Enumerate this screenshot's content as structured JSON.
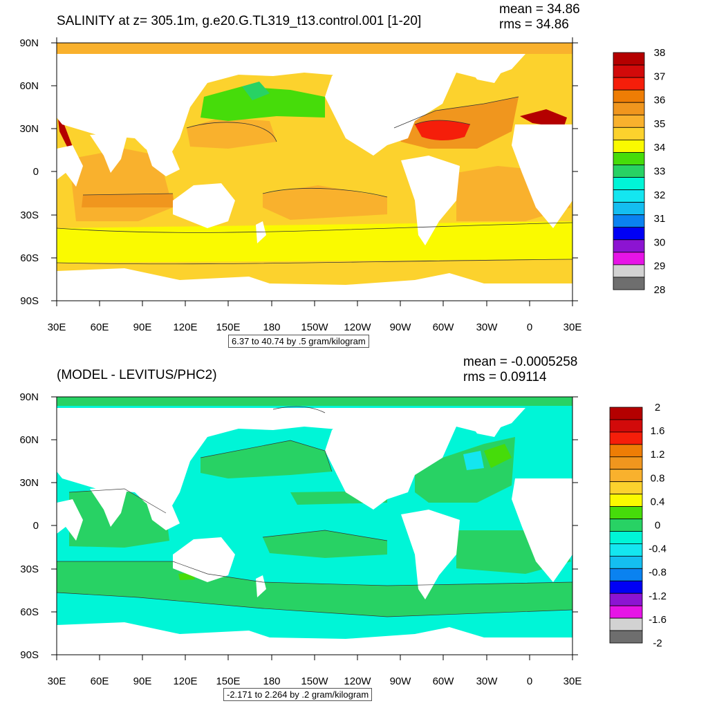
{
  "panels": [
    {
      "id": "salinity",
      "title": "SALINITY at z= 305.1m, g.e20.G.TL319_t13.control.001 [1-20]",
      "mean_text": "mean = 34.86",
      "rms_text": "rms = 34.86",
      "subtitle": "6.37 to 40.74 by .5 gram/kilogram",
      "colorbar_labels": [
        "38",
        "37",
        "36",
        "35",
        "34",
        "33",
        "32",
        "31",
        "30",
        "29",
        "28"
      ],
      "colorbar_colors": [
        "#b40000",
        "#d20a0a",
        "#f51e0a",
        "#ee7d05",
        "#f0961e",
        "#f9b12d",
        "#fcd22d",
        "#fafa00",
        "#46dc0a",
        "#28d264",
        "#00f5d7",
        "#14e6f0",
        "#14bef0",
        "#0a82f0",
        "#0000f5",
        "#8c14d2",
        "#e614e6",
        "#d2d2d2",
        "#6e6e6e"
      ],
      "ocean_base_color": "#fcd22d",
      "x_ticks": [
        "30E",
        "60E",
        "90E",
        "120E",
        "150E",
        "180",
        "150W",
        "120W",
        "90W",
        "60W",
        "30W",
        "0",
        "30E"
      ],
      "y_ticks": [
        "90N",
        "60N",
        "30N",
        "0",
        "30S",
        "60S",
        "90S"
      ]
    },
    {
      "id": "difference",
      "title": "(MODEL - LEVITUS/PHC2)",
      "mean_text": "mean = -0.0005258",
      "rms_text": "rms = 0.09114",
      "subtitle": "-2.171 to 2.264 by .2 gram/kilogram",
      "colorbar_labels": [
        "2",
        "1.6",
        "1.2",
        "0.8",
        "0.4",
        "0",
        "-0.4",
        "-0.8",
        "-1.2",
        "-1.6",
        "-2"
      ],
      "colorbar_colors": [
        "#b40000",
        "#d20a0a",
        "#f51e0a",
        "#ee7d05",
        "#f0961e",
        "#f9b12d",
        "#fcd22d",
        "#fafa00",
        "#46dc0a",
        "#28d264",
        "#00f5d7",
        "#14e6f0",
        "#14bef0",
        "#0a82f0",
        "#0000f5",
        "#8c14d2",
        "#e614e6",
        "#d2d2d2",
        "#6e6e6e"
      ],
      "ocean_base_color": "#00f5d7",
      "x_ticks": [
        "30E",
        "60E",
        "90E",
        "120E",
        "150E",
        "180",
        "150W",
        "120W",
        "90W",
        "60W",
        "30W",
        "0",
        "30E"
      ],
      "y_ticks": [
        "90N",
        "60N",
        "30N",
        "0",
        "30S",
        "60S",
        "90S"
      ]
    }
  ]
}
